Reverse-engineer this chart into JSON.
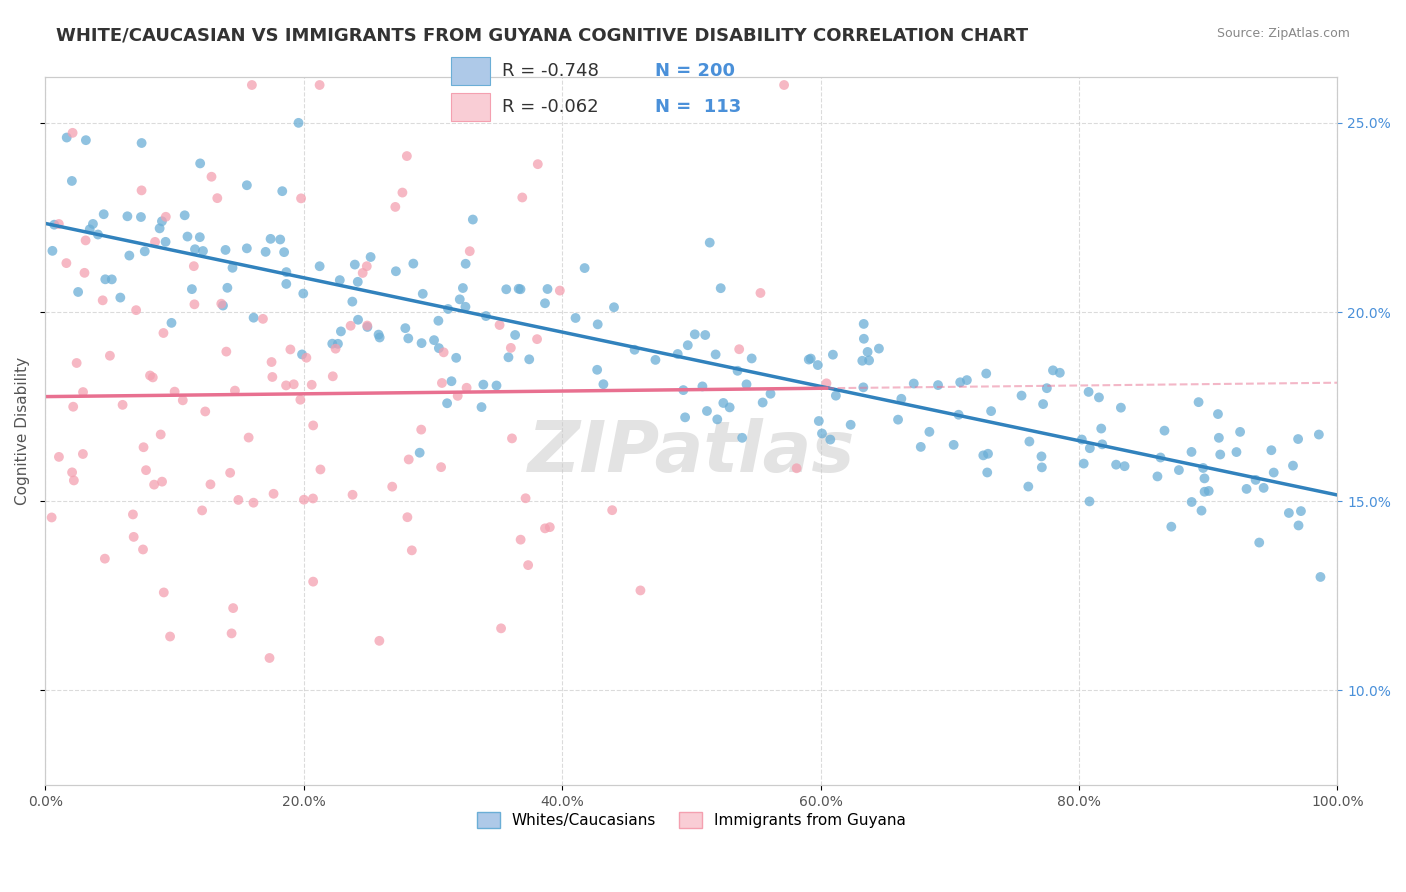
{
  "title": "WHITE/CAUCASIAN VS IMMIGRANTS FROM GUYANA COGNITIVE DISABILITY CORRELATION CHART",
  "source_text": "Source: ZipAtlas.com",
  "xlabel": "",
  "ylabel": "Cognitive Disability",
  "xlim": [
    0,
    1
  ],
  "ylim": [
    0.075,
    0.262
  ],
  "xticks": [
    0.0,
    0.2,
    0.4,
    0.6,
    0.8,
    1.0
  ],
  "xtick_labels": [
    "0.0%",
    "20.0%",
    "40.0%",
    "60.0%",
    "80.0%",
    "100.0%"
  ],
  "ytick_labels": [
    "10.0%",
    "15.0%",
    "20.0%",
    "25.0%"
  ],
  "yticks": [
    0.1,
    0.15,
    0.2,
    0.25
  ],
  "blue_color": "#6baed6",
  "blue_fill": "#aec9e8",
  "pink_color": "#f4a0b0",
  "pink_fill": "#f9cdd5",
  "trend_blue": "#3182bd",
  "trend_pink": "#e87090",
  "R_blue": -0.748,
  "N_blue": 200,
  "R_pink": -0.062,
  "N_pink": 113,
  "legend_label_blue": "Whites/Caucasians",
  "legend_label_pink": "Immigrants from Guyana",
  "watermark": "ZIPatlas",
  "title_fontsize": 13,
  "axis_fontsize": 11,
  "tick_fontsize": 10,
  "background_color": "#ffffff",
  "grid_color": "#cccccc",
  "seed": 42
}
